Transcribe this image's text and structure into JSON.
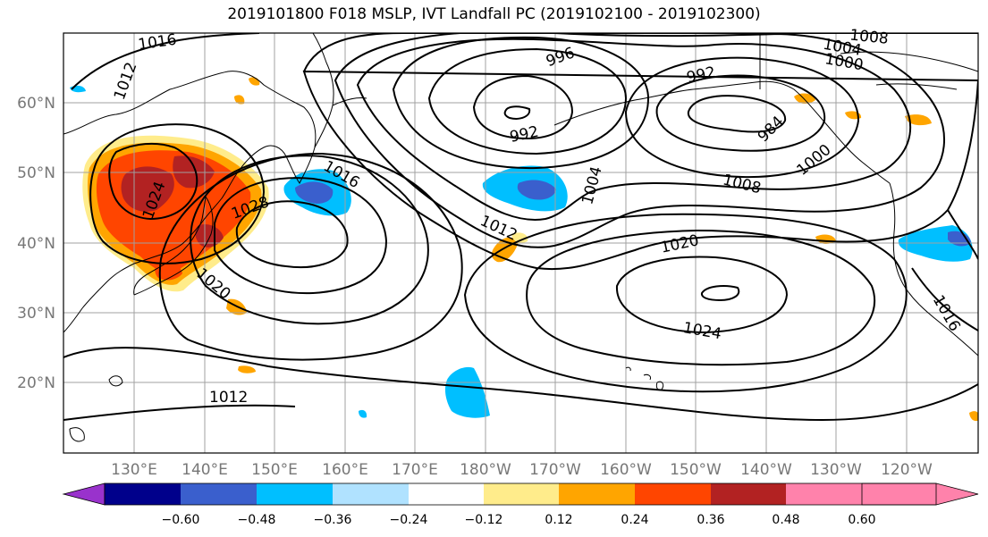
{
  "title": "2019101800 F018 MSLP, IVT Landfall PC (2019102100 - 2019102300)",
  "lat_labels": [
    "60°N",
    "50°N",
    "40°N",
    "30°N",
    "20°N"
  ],
  "lon_labels": [
    "130°E",
    "140°E",
    "150°E",
    "160°E",
    "170°E",
    "180°W",
    "170°W",
    "160°W",
    "150°W",
    "140°W",
    "130°W",
    "120°W"
  ],
  "isobar_labels": [
    "1016",
    "1012",
    "996",
    "1004",
    "1000",
    "1008",
    "992",
    "984",
    "992",
    "1000",
    "1008",
    "1016",
    "1028",
    "1024",
    "1020",
    "1004",
    "1012",
    "1020",
    "1024",
    "1012",
    "1016"
  ],
  "colorbar": {
    "tick_labels": [
      "−0.60",
      "−0.48",
      "−0.36",
      "−0.24",
      "−0.12",
      "0.12",
      "0.24",
      "0.36",
      "0.48",
      "0.60"
    ],
    "colors": [
      "#9932cc",
      "#00008b",
      "#3a5fcd",
      "#00bfff",
      "#b0e2ff",
      "#ffffff",
      "#ffec8b",
      "#ffa500",
      "#ff4500",
      "#b22222",
      "#ff82ab"
    ]
  }
}
